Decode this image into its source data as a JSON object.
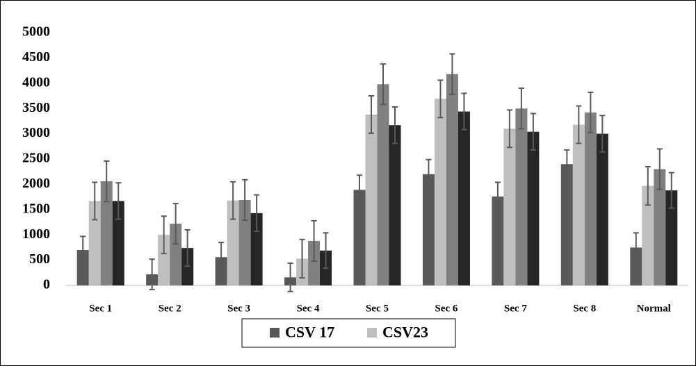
{
  "chart_data": {
    "type": "bar",
    "categories": [
      "Sec 1",
      "Sec 2",
      "Sec 3",
      "Sec 4",
      "Sec 5",
      "Sec 6",
      "Sec 7",
      "Sec 8",
      "Normal"
    ],
    "series": [
      {
        "name": "CSV 17",
        "color": "#595959",
        "values": [
          700,
          220,
          560,
          160,
          1890,
          2200,
          1760,
          2400,
          750
        ],
        "errors": [
          270,
          300,
          290,
          280,
          290,
          290,
          280,
          280,
          290
        ]
      },
      {
        "name": "CSV23",
        "color": "#bfbfbf",
        "values": [
          1670,
          1000,
          1680,
          530,
          3380,
          3690,
          3100,
          3180,
          1970
        ],
        "errors": [
          370,
          370,
          370,
          380,
          370,
          370,
          370,
          370,
          380
        ]
      },
      {
        "color": "#808080",
        "values": [
          2060,
          1220,
          1690,
          880,
          3980,
          4180,
          3500,
          3420,
          2300
        ],
        "errors": [
          400,
          400,
          400,
          400,
          400,
          400,
          400,
          400,
          400
        ]
      },
      {
        "color": "#262626",
        "values": [
          1670,
          740,
          1430,
          690,
          3170,
          3440,
          3040,
          3000,
          1880
        ],
        "errors": [
          360,
          360,
          360,
          350,
          360,
          360,
          360,
          360,
          350
        ]
      }
    ],
    "ylim": [
      0,
      5000
    ],
    "yticks": [
      0,
      500,
      1000,
      1500,
      2000,
      2500,
      3000,
      3500,
      4000,
      4500,
      5000
    ],
    "grid": false,
    "legend": "bottom"
  }
}
